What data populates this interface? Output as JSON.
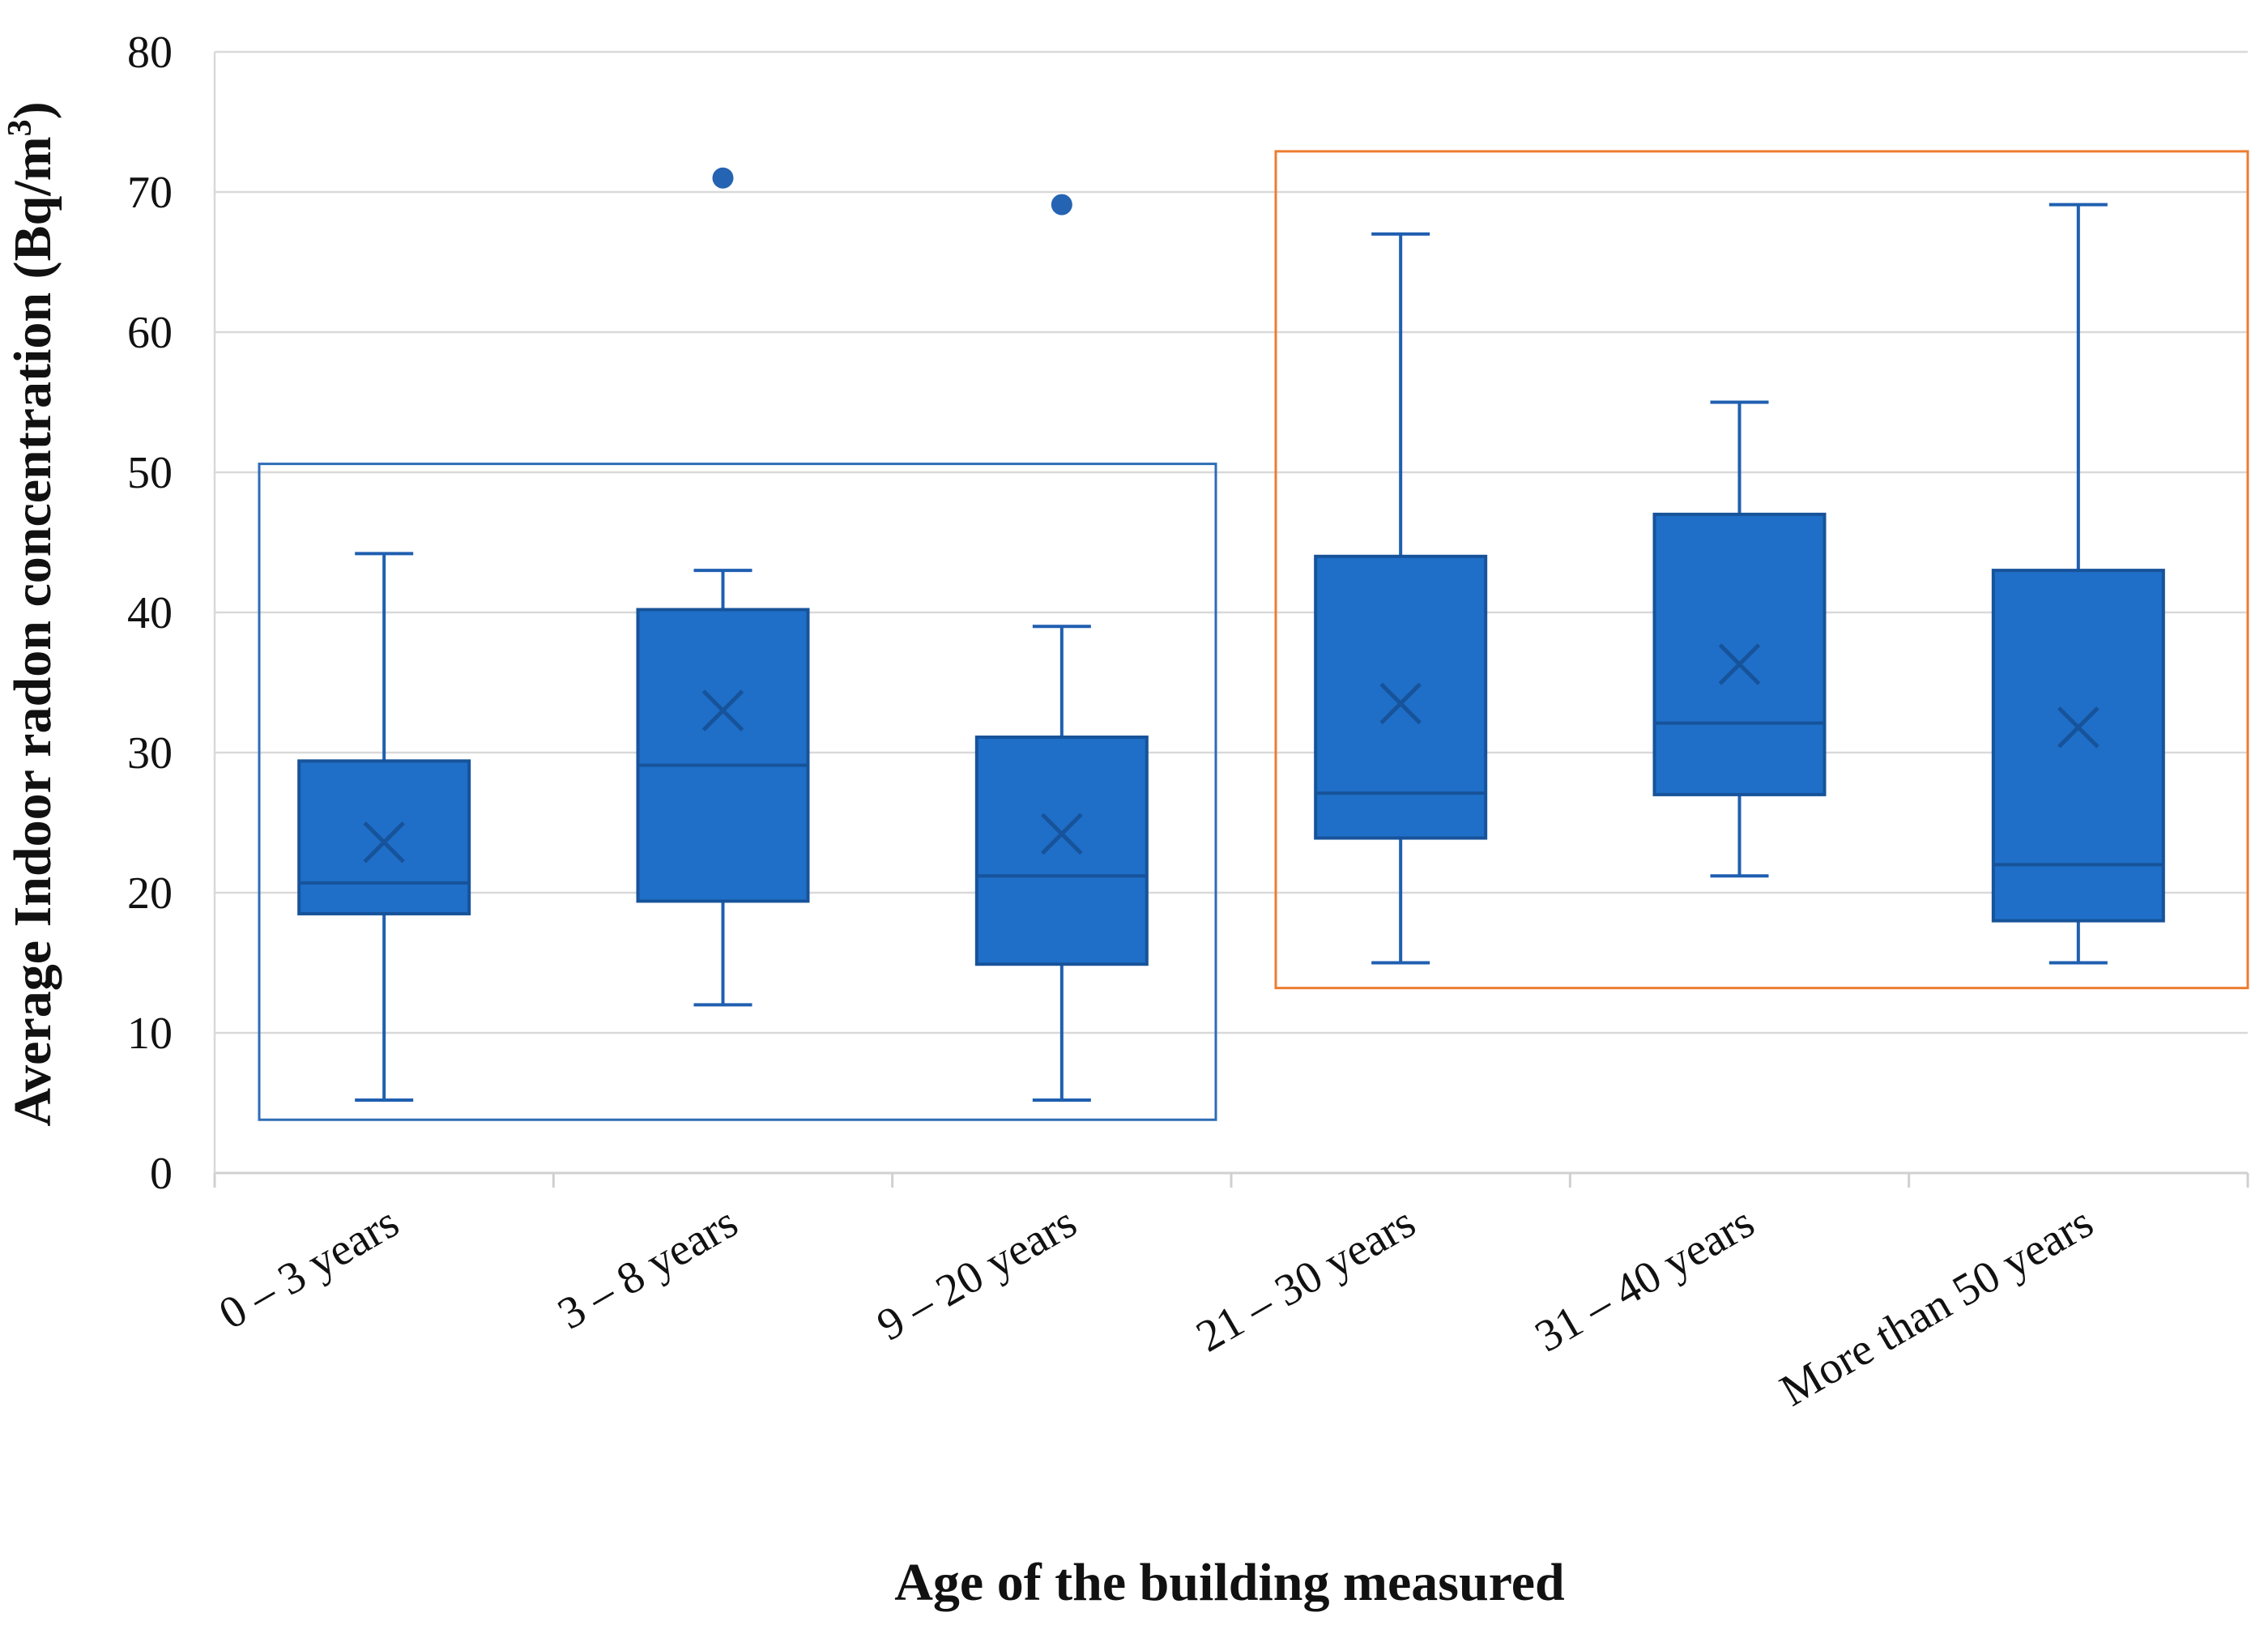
{
  "chart_data": {
    "type": "box",
    "title": "",
    "xlabel": "Age of the building measured",
    "ylabel_main": "Average Indoor radon concentration (Bq/m",
    "ylabel_sup": "3",
    "ylabel_end": ")",
    "ylim": [
      0,
      80
    ],
    "yticks": [
      0,
      10,
      20,
      30,
      40,
      50,
      60,
      70,
      80
    ],
    "grid": true,
    "categories": [
      "0 – 3 years",
      "3 – 8 years",
      "9 – 20 years",
      "21 – 30 years",
      "31 – 40 years",
      "More than 50 years"
    ],
    "boxes": [
      {
        "category": "0 – 3 years",
        "whisker_low": 5.2,
        "q1": 18.5,
        "median": 20.7,
        "q3": 29.4,
        "whisker_high": 44.2,
        "mean": 23.6,
        "outliers": []
      },
      {
        "category": "3 – 8 years",
        "whisker_low": 12,
        "q1": 19.4,
        "median": 29.1,
        "q3": 40.2,
        "whisker_high": 43,
        "mean": 33,
        "outliers": [
          71
        ]
      },
      {
        "category": "9 – 20 years",
        "whisker_low": 5.2,
        "q1": 14.9,
        "median": 21.2,
        "q3": 31.1,
        "whisker_high": 39,
        "mean": 24.2,
        "outliers": [
          69.1
        ]
      },
      {
        "category": "21 – 30 years",
        "whisker_low": 15,
        "q1": 23.9,
        "median": 27.1,
        "q3": 44,
        "whisker_high": 67,
        "mean": 33.5,
        "outliers": []
      },
      {
        "category": "31 – 40 years",
        "whisker_low": 21.2,
        "q1": 27,
        "median": 32.1,
        "q3": 47,
        "whisker_high": 55,
        "mean": 36.3,
        "outliers": []
      },
      {
        "category": "More than 50 years",
        "whisker_low": 15,
        "q1": 18,
        "median": 22,
        "q3": 43,
        "whisker_high": 69.1,
        "mean": 31.8,
        "outliers": []
      }
    ],
    "groups": [
      {
        "categories": [
          "0 – 3 years",
          "3 – 8 years",
          "9 – 20 years"
        ],
        "y_range": [
          3.8,
          50.6
        ],
        "color": "#2e6db5"
      },
      {
        "categories": [
          "21 – 30 years",
          "31 – 40 years",
          "More than 50 years"
        ],
        "y_range": [
          13.2,
          72.9
        ],
        "color": "#ed7d31"
      }
    ],
    "colors": {
      "box_fill": "#1f6fc8",
      "box_stroke": "#17539a",
      "whisker": "#1f5fb0",
      "outlier": "#2563b3",
      "grid": "#d9d9d9",
      "axis": "#d0d0d0"
    }
  }
}
